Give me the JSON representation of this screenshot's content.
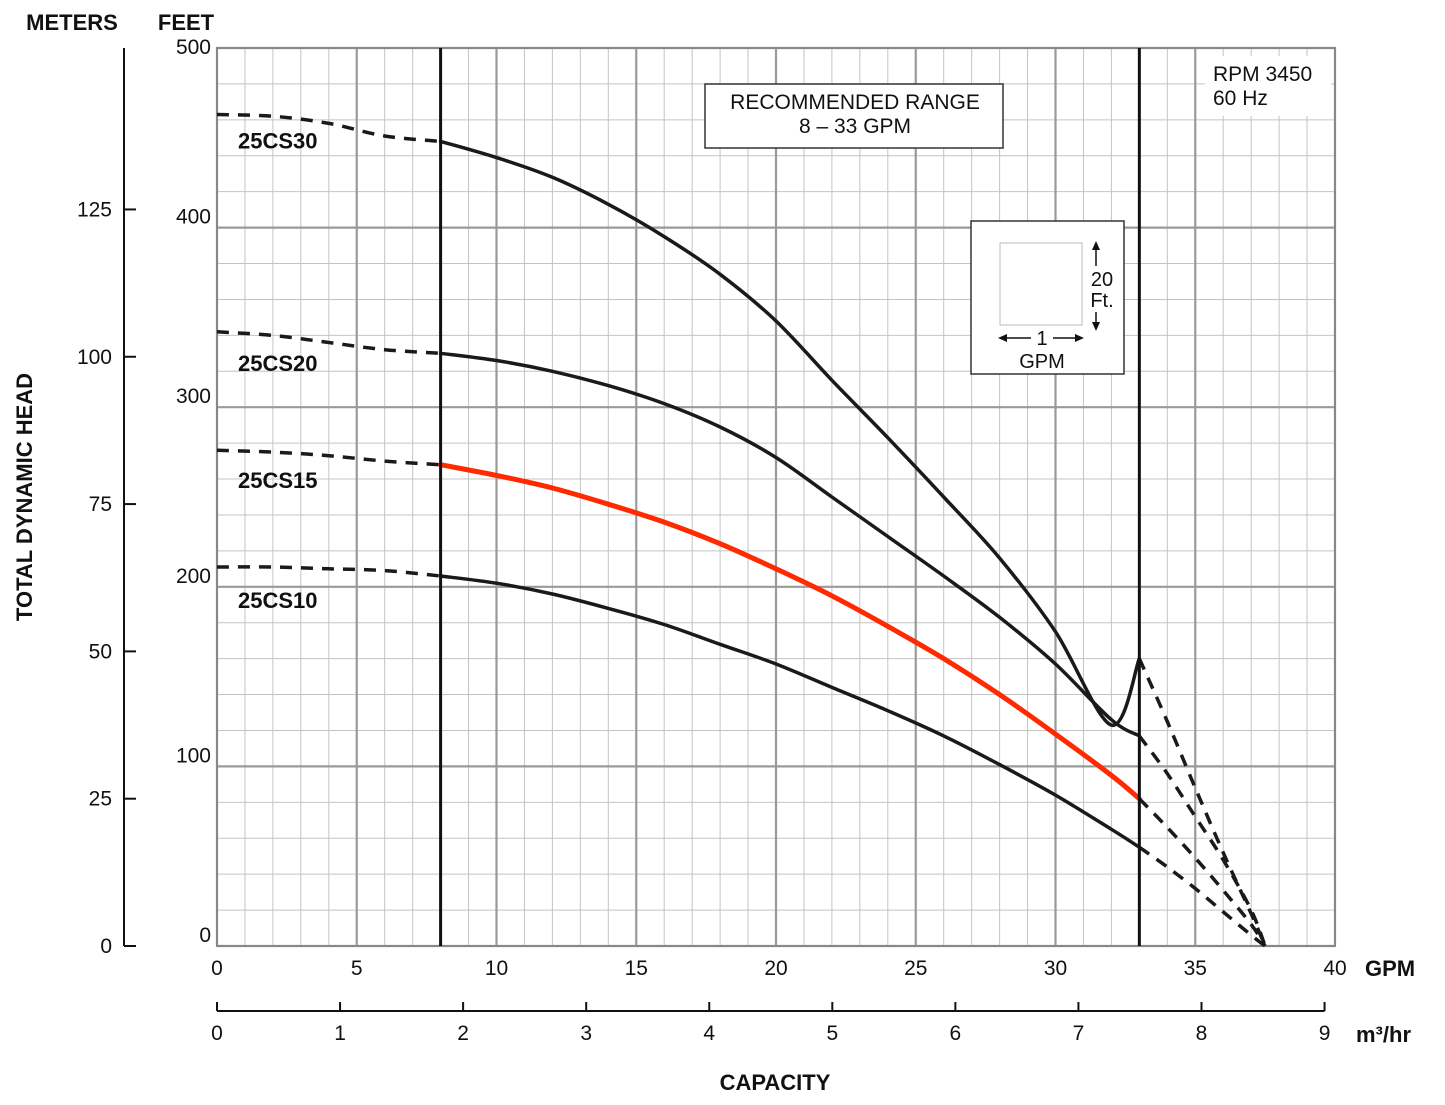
{
  "chart_data": {
    "type": "line",
    "units": {
      "left_outer": "METERS",
      "left_inner": "FEET",
      "bottom": "GPM",
      "bottom2": "m³/hr"
    },
    "ylabel": "TOTAL DYNAMIC HEAD",
    "xlabel": "CAPACITY",
    "xlim": [
      0,
      40
    ],
    "ylim": [
      0,
      500
    ],
    "x_ticks": [
      "0",
      "5",
      "10",
      "15",
      "20",
      "25",
      "30",
      "35",
      "40"
    ],
    "y_ticks_feet": [
      "0",
      "100",
      "200",
      "300",
      "400",
      "500"
    ],
    "y_ticks_meters": [
      "0",
      "25",
      "50",
      "75",
      "100",
      "125"
    ],
    "x2_ticks": [
      "0",
      "1",
      "2",
      "3",
      "4",
      "5",
      "6",
      "7",
      "8",
      "9"
    ],
    "grid": true,
    "info": {
      "line1": "RPM 3450",
      "line2": "60 Hz"
    },
    "recommended_range": {
      "line1": "RECOMMENDED RANGE",
      "line2": "8 – 33 GPM",
      "from_gpm": 8,
      "to_gpm": 33
    },
    "scale_box": {
      "vertical": "20",
      "vertical_unit": "Ft.",
      "horizontal": "1",
      "horizontal_unit": "GPM"
    },
    "highlight_color": "#ff2a00",
    "line_color": "#1a1a1a",
    "series": [
      {
        "name": "25CS30",
        "highlight": false,
        "x": [
          0,
          2,
          4,
          6,
          8,
          10,
          12,
          14,
          16,
          18,
          20,
          22,
          24,
          26,
          28,
          30,
          32,
          33,
          34,
          35,
          36,
          37,
          37.5
        ],
        "y": [
          463,
          462,
          458,
          451,
          448,
          439,
          428,
          413,
          395,
          374,
          348,
          315,
          283,
          250,
          216,
          175,
          123,
          160,
          125,
          88,
          52,
          18,
          0
        ]
      },
      {
        "name": "25CS20",
        "highlight": false,
        "x": [
          0,
          2,
          4,
          6,
          8,
          10,
          12,
          14,
          16,
          18,
          20,
          22,
          24,
          26,
          28,
          30,
          32,
          33,
          34,
          35,
          36,
          37,
          37.5
        ],
        "y": [
          342,
          340,
          336,
          332,
          330,
          326,
          320,
          312,
          302,
          289,
          272,
          250,
          228,
          206,
          183,
          157,
          126,
          117,
          96,
          72,
          48,
          20,
          0
        ]
      },
      {
        "name": "25CS15",
        "highlight": true,
        "x": [
          0,
          2,
          4,
          6,
          8,
          10,
          12,
          14,
          16,
          18,
          20,
          22,
          24,
          26,
          28,
          30,
          32,
          33,
          34,
          35,
          36,
          37,
          37.5
        ],
        "y": [
          276,
          275,
          273,
          270,
          268,
          262,
          255,
          246,
          236,
          224,
          210,
          195,
          178,
          160,
          140,
          118,
          95,
          82,
          66,
          49,
          31,
          12,
          0
        ]
      },
      {
        "name": "25CS10",
        "highlight": false,
        "x": [
          0,
          2,
          4,
          6,
          8,
          10,
          12,
          14,
          16,
          18,
          20,
          22,
          24,
          26,
          28,
          30,
          32,
          33,
          34,
          35,
          36,
          37,
          37.5
        ],
        "y": [
          211,
          211,
          210,
          209,
          206,
          202,
          196,
          188,
          179,
          168,
          157,
          144,
          131,
          117,
          101,
          84,
          65,
          55,
          44,
          32,
          19,
          6,
          0
        ]
      }
    ],
    "series_label_y_feet": {
      "25CS30": 448,
      "25CS20": 324,
      "25CS15": 259,
      "25CS10": 192
    }
  }
}
